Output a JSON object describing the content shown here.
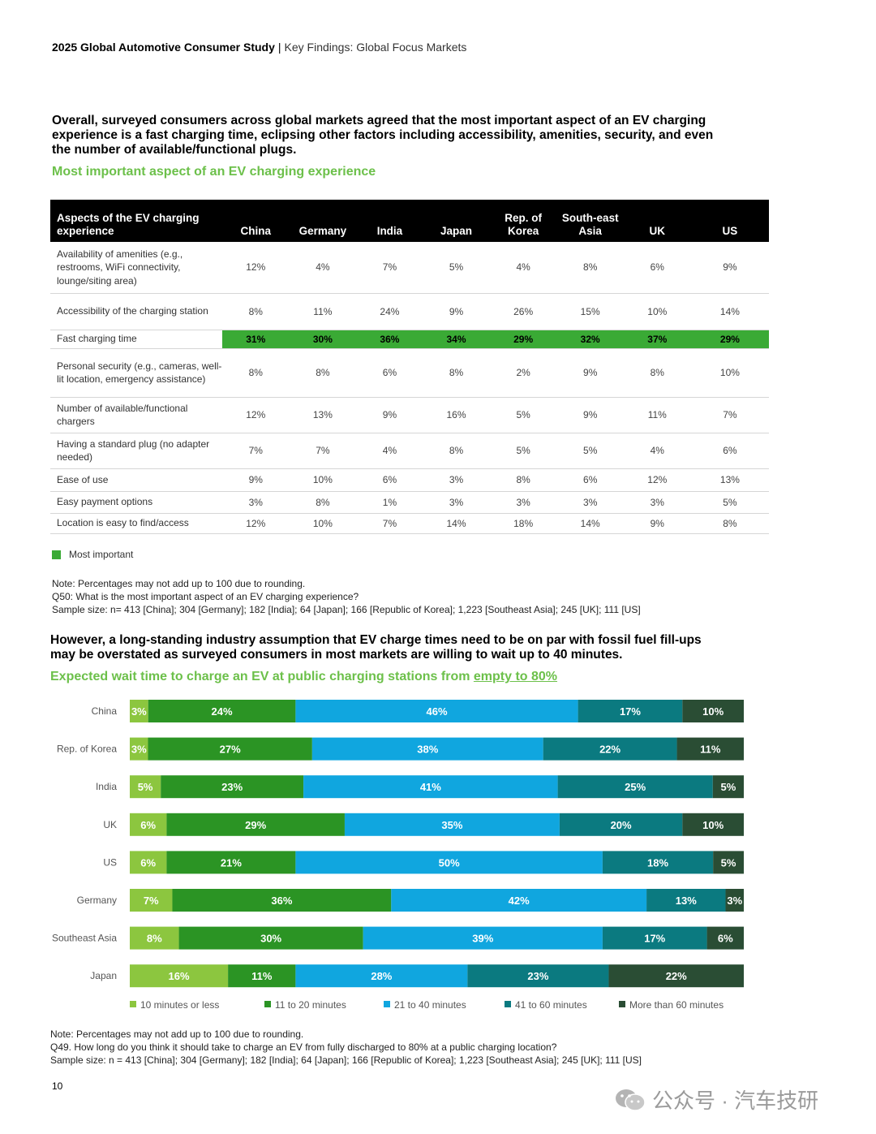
{
  "header": {
    "title": "2025 Global Automotive Consumer Study",
    "separator": "|",
    "subtitle": "Key Findings: Global Focus Markets"
  },
  "section1": {
    "lead": "Overall, surveyed consumers across global markets agreed that the most important aspect of an EV charging experience is a fast charging time, eclipsing other factors including accessibility, amenities, security, and even the number of available/functional plugs.",
    "title": "Most important aspect of an EV charging experience",
    "table": {
      "header_first": "Aspects of the EV charging experience",
      "columns": [
        "China",
        "Germany",
        "India",
        "Japan",
        "Rep. of Korea",
        "South-east Asia",
        "UK",
        "US"
      ],
      "rows": [
        {
          "label": "Availability of amenities (e.g., restrooms, WiFi connectivity, lounge/siting area)",
          "values": [
            "12%",
            "4%",
            "7%",
            "5%",
            "4%",
            "8%",
            "6%",
            "9%"
          ],
          "highlight": false
        },
        {
          "label": "Accessibility of the charging station",
          "values": [
            "8%",
            "11%",
            "24%",
            "9%",
            "26%",
            "15%",
            "10%",
            "14%"
          ],
          "highlight": false
        },
        {
          "label": "Fast charging time",
          "values": [
            "31%",
            "30%",
            "36%",
            "34%",
            "29%",
            "32%",
            "37%",
            "29%"
          ],
          "highlight": true
        },
        {
          "label": "Personal security (e.g., cameras, well-lit location, emergency assistance)",
          "values": [
            "8%",
            "8%",
            "6%",
            "8%",
            "2%",
            "9%",
            "8%",
            "10%"
          ],
          "highlight": false
        },
        {
          "label": "Number of available/functional chargers",
          "values": [
            "12%",
            "13%",
            "9%",
            "16%",
            "5%",
            "9%",
            "11%",
            "7%"
          ],
          "highlight": false
        },
        {
          "label": "Having a standard plug (no adapter needed)",
          "values": [
            "7%",
            "7%",
            "4%",
            "8%",
            "5%",
            "5%",
            "4%",
            "6%"
          ],
          "highlight": false
        },
        {
          "label": "Ease of use",
          "values": [
            "9%",
            "10%",
            "6%",
            "3%",
            "8%",
            "6%",
            "12%",
            "13%"
          ],
          "highlight": false
        },
        {
          "label": "Easy payment options",
          "values": [
            "3%",
            "8%",
            "1%",
            "3%",
            "3%",
            "3%",
            "3%",
            "5%"
          ],
          "highlight": false
        },
        {
          "label": "Location is easy to find/access",
          "values": [
            "12%",
            "10%",
            "7%",
            "14%",
            "18%",
            "14%",
            "9%",
            "8%"
          ],
          "highlight": false
        }
      ]
    },
    "legend": "Most important",
    "highlight_color": "#3aaa35",
    "notes": [
      "Note: Percentages may not add up to 100 due to rounding.",
      "Q50: What is the most important aspect of an EV charging experience?",
      "Sample size: n= 413 [China]; 304 [Germany]; 182 [India]; 64 [Japan]; 166 [Republic of Korea]; 1,223 [Southeast Asia]; 245 [UK]; 111 [US]"
    ]
  },
  "section2": {
    "lead": "However, a long-standing industry assumption that EV charge times need to be on par with fossil fuel fill-ups may be overstated as surveyed consumers in most markets are willing to wait up to 40 minutes.",
    "title_prefix": "Expected wait time to charge an EV at public charging stations from ",
    "title_underlined": "empty to 80%",
    "notes": [
      "Note: Percentages may not add up to 100 due to rounding.",
      "Q49. How long do you think it should take to charge an EV from fully discharged to 80% at a public charging location?",
      "Sample size: n = 413 [China]; 304 [Germany]; 182 [India]; 64 [Japan]; 166 [Republic of Korea]; 1,223 [Southeast Asia]; 245 [UK]; 111 [US]"
    ]
  },
  "chart_data": {
    "type": "bar",
    "orientation": "horizontal",
    "stacked": true,
    "title": "Expected wait time to charge an EV at public charging stations from empty to 80%",
    "categories": [
      "China",
      "Rep. of Korea",
      "India",
      "UK",
      "US",
      "Germany",
      "Southeast Asia",
      "Japan"
    ],
    "series": [
      {
        "name": "10 minutes or less",
        "color": "#8cc63f",
        "values": [
          3,
          3,
          5,
          6,
          6,
          7,
          8,
          16
        ]
      },
      {
        "name": "11 to 20 minutes",
        "color": "#2b9424",
        "values": [
          24,
          27,
          23,
          29,
          21,
          36,
          30,
          11
        ]
      },
      {
        "name": "21 to 40 minutes",
        "color": "#10a6df",
        "values": [
          46,
          38,
          41,
          35,
          50,
          42,
          39,
          28
        ]
      },
      {
        "name": "41 to 60 minutes",
        "color": "#0b7a80",
        "values": [
          17,
          22,
          25,
          20,
          18,
          13,
          17,
          23
        ]
      },
      {
        "name": "More than 60 minutes",
        "color": "#2a4d34",
        "values": [
          10,
          11,
          5,
          10,
          5,
          3,
          6,
          22
        ]
      }
    ],
    "value_suffix": "%",
    "legend_position": "bottom",
    "grid": false
  },
  "page_number": "10",
  "watermark": "公众号 · 汽车技研"
}
